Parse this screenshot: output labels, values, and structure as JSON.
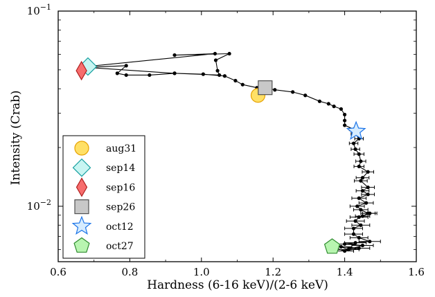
{
  "chart_data": {
    "type": "scatter",
    "xlabel": "Hardness (6-16 keV)/(2-6 keV)",
    "ylabel": "Intensity (Crab)",
    "xlim": [
      0.6,
      1.6
    ],
    "ylim": [
      0.0052,
      0.1
    ],
    "yscale": "log",
    "x_ticks": [
      "0.6",
      "0.8",
      "1.0",
      "1.2",
      "1.4",
      "1.6"
    ],
    "x_tick_values": [
      0.6,
      0.8,
      1.0,
      1.2,
      1.4,
      1.6
    ],
    "y_ticks": [
      {
        "value": 0.1,
        "base": "10",
        "exp": "−1"
      },
      {
        "value": 0.01,
        "base": "10",
        "exp": "−2"
      }
    ],
    "track": {
      "marker_color": "#000000",
      "points": [
        {
          "x": 0.68,
          "y": 0.052
        },
        {
          "x": 1.038,
          "y": 0.0605
        },
        {
          "x": 0.925,
          "y": 0.0595
        },
        {
          "x": 1.078,
          "y": 0.0605
        },
        {
          "x": 1.04,
          "y": 0.056
        },
        {
          "x": 1.045,
          "y": 0.0495
        },
        {
          "x": 1.05,
          "y": 0.047
        },
        {
          "x": 0.925,
          "y": 0.048
        },
        {
          "x": 0.855,
          "y": 0.047
        },
        {
          "x": 0.79,
          "y": 0.047
        },
        {
          "x": 0.765,
          "y": 0.048
        },
        {
          "x": 0.79,
          "y": 0.0525
        },
        {
          "x": 0.68,
          "y": 0.0515
        },
        {
          "x": 0.925,
          "y": 0.048
        },
        {
          "x": 1.005,
          "y": 0.0475
        },
        {
          "x": 1.065,
          "y": 0.0465
        },
        {
          "x": 1.095,
          "y": 0.044
        },
        {
          "x": 1.115,
          "y": 0.042
        },
        {
          "x": 1.155,
          "y": 0.0405
        },
        {
          "x": 1.175,
          "y": 0.0405
        },
        {
          "x": 1.205,
          "y": 0.0395
        },
        {
          "x": 1.255,
          "y": 0.0385
        },
        {
          "x": 1.29,
          "y": 0.037
        },
        {
          "x": 1.33,
          "y": 0.0345
        },
        {
          "x": 1.355,
          "y": 0.0335
        },
        {
          "x": 1.37,
          "y": 0.0325
        },
        {
          "x": 1.39,
          "y": 0.0315
        },
        {
          "x": 1.4,
          "y": 0.0295
        },
        {
          "x": 1.4,
          "y": 0.0275
        },
        {
          "x": 1.4,
          "y": 0.026
        },
        {
          "x": 1.425,
          "y": 0.0248,
          "xerr": 0.012
        },
        {
          "x": 1.43,
          "y": 0.0235,
          "xerr": 0.012
        },
        {
          "x": 1.44,
          "y": 0.0222,
          "xerr": 0.012
        },
        {
          "x": 1.425,
          "y": 0.021,
          "xerr": 0.012
        },
        {
          "x": 1.43,
          "y": 0.0196,
          "xerr": 0.012
        },
        {
          "x": 1.44,
          "y": 0.0185,
          "xerr": 0.014
        },
        {
          "x": 1.445,
          "y": 0.017,
          "xerr": 0.014
        },
        {
          "x": 1.44,
          "y": 0.016,
          "xerr": 0.014
        },
        {
          "x": 1.465,
          "y": 0.015,
          "xerr": 0.016
        },
        {
          "x": 1.45,
          "y": 0.014,
          "xerr": 0.018
        },
        {
          "x": 1.445,
          "y": 0.0135,
          "xerr": 0.018
        },
        {
          "x": 1.465,
          "y": 0.0125,
          "xerr": 0.018
        },
        {
          "x": 1.45,
          "y": 0.012,
          "xerr": 0.018
        },
        {
          "x": 1.465,
          "y": 0.0115,
          "xerr": 0.018
        },
        {
          "x": 1.44,
          "y": 0.011,
          "xerr": 0.02
        },
        {
          "x": 1.46,
          "y": 0.0104,
          "xerr": 0.02
        },
        {
          "x": 1.435,
          "y": 0.01,
          "xerr": 0.02
        },
        {
          "x": 1.445,
          "y": 0.0096,
          "xerr": 0.02
        },
        {
          "x": 1.465,
          "y": 0.0092,
          "xerr": 0.02
        },
        {
          "x": 1.45,
          "y": 0.0089,
          "xerr": 0.02
        },
        {
          "x": 1.47,
          "y": 0.0092,
          "xerr": 0.02
        },
        {
          "x": 1.44,
          "y": 0.0088,
          "xerr": 0.025
        },
        {
          "x": 1.43,
          "y": 0.0084,
          "xerr": 0.025
        },
        {
          "x": 1.445,
          "y": 0.008,
          "xerr": 0.025
        },
        {
          "x": 1.425,
          "y": 0.0077,
          "xerr": 0.025
        },
        {
          "x": 1.425,
          "y": 0.0072,
          "xerr": 0.025
        },
        {
          "x": 1.44,
          "y": 0.0069,
          "xerr": 0.025
        },
        {
          "x": 1.47,
          "y": 0.0066,
          "xerr": 0.03
        },
        {
          "x": 1.43,
          "y": 0.0065,
          "xerr": 0.03
        },
        {
          "x": 1.4,
          "y": 0.0064,
          "xerr": 0.03
        },
        {
          "x": 1.45,
          "y": 0.0063,
          "xerr": 0.03
        },
        {
          "x": 1.41,
          "y": 0.006,
          "xerr": 0.03
        },
        {
          "x": 1.39,
          "y": 0.0062,
          "xerr": 0.03
        },
        {
          "x": 1.44,
          "y": 0.0061,
          "xerr": 0.03
        },
        {
          "x": 1.4,
          "y": 0.0059,
          "xerr": 0.025
        },
        {
          "x": 1.365,
          "y": 0.0062
        }
      ]
    },
    "markers": [
      {
        "name": "aug31",
        "shape": "circle",
        "x": 1.158,
        "y": 0.037,
        "fill": "#ffe066",
        "stroke": "#e6a100"
      },
      {
        "name": "sep14",
        "shape": "diamond",
        "x": 0.683,
        "y": 0.052,
        "fill": "#c8f5f2",
        "stroke": "#17a0a0"
      },
      {
        "name": "sep16",
        "shape": "thin-diamond",
        "x": 0.665,
        "y": 0.0495,
        "fill": "#f76d6d",
        "stroke": "#b02020"
      },
      {
        "name": "sep26",
        "shape": "square",
        "x": 1.178,
        "y": 0.0405,
        "fill": "#c8c8c8",
        "stroke": "#505050"
      },
      {
        "name": "oct12",
        "shape": "star",
        "x": 1.432,
        "y": 0.0242,
        "fill": "#d6ecff",
        "stroke": "#1a73e8"
      },
      {
        "name": "oct27",
        "shape": "pentagon",
        "x": 1.365,
        "y": 0.0062,
        "fill": "#b8f5b0",
        "stroke": "#2e8b2e"
      }
    ],
    "legend": {
      "placement": "lower-left",
      "entries": [
        "aug31",
        "sep14",
        "sep16",
        "sep26",
        "oct12",
        "oct27"
      ]
    }
  }
}
